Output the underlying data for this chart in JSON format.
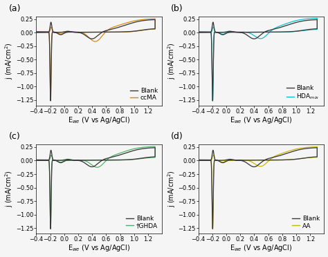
{
  "panels": [
    "a",
    "b",
    "c",
    "d"
  ],
  "xlim": [
    -0.4,
    1.4
  ],
  "ylim": [
    -1.35,
    0.3
  ],
  "xticks": [
    -0.4,
    -0.2,
    0.0,
    0.2,
    0.4,
    0.6,
    0.8,
    1.0,
    1.2
  ],
  "yticks": [
    -1.25,
    -1.0,
    -0.75,
    -0.5,
    -0.25,
    0.0,
    0.25
  ],
  "xlabel": "E$_{we}$ (V vs Ag/AgCl)",
  "ylabel": "j (mA/cm$^{2}$)",
  "colors": {
    "blank": "#3a3a3a",
    "ccMA": "#d4850a",
    "HDA_mix": "#00c0cc",
    "tGHDA": "#4caf60",
    "AA": "#c8b400"
  },
  "legend_labels": {
    "a": [
      "Blank",
      "ccMA"
    ],
    "b": [
      "Blank",
      "HDA$_{mix}$"
    ],
    "c": [
      "Blank",
      "†GHDA"
    ],
    "d": [
      "Blank",
      "AA"
    ]
  },
  "background_color": "#f5f5f5",
  "panel_label_fontsize": 9,
  "axis_label_fontsize": 7,
  "tick_fontsize": 6,
  "legend_fontsize": 6.5
}
